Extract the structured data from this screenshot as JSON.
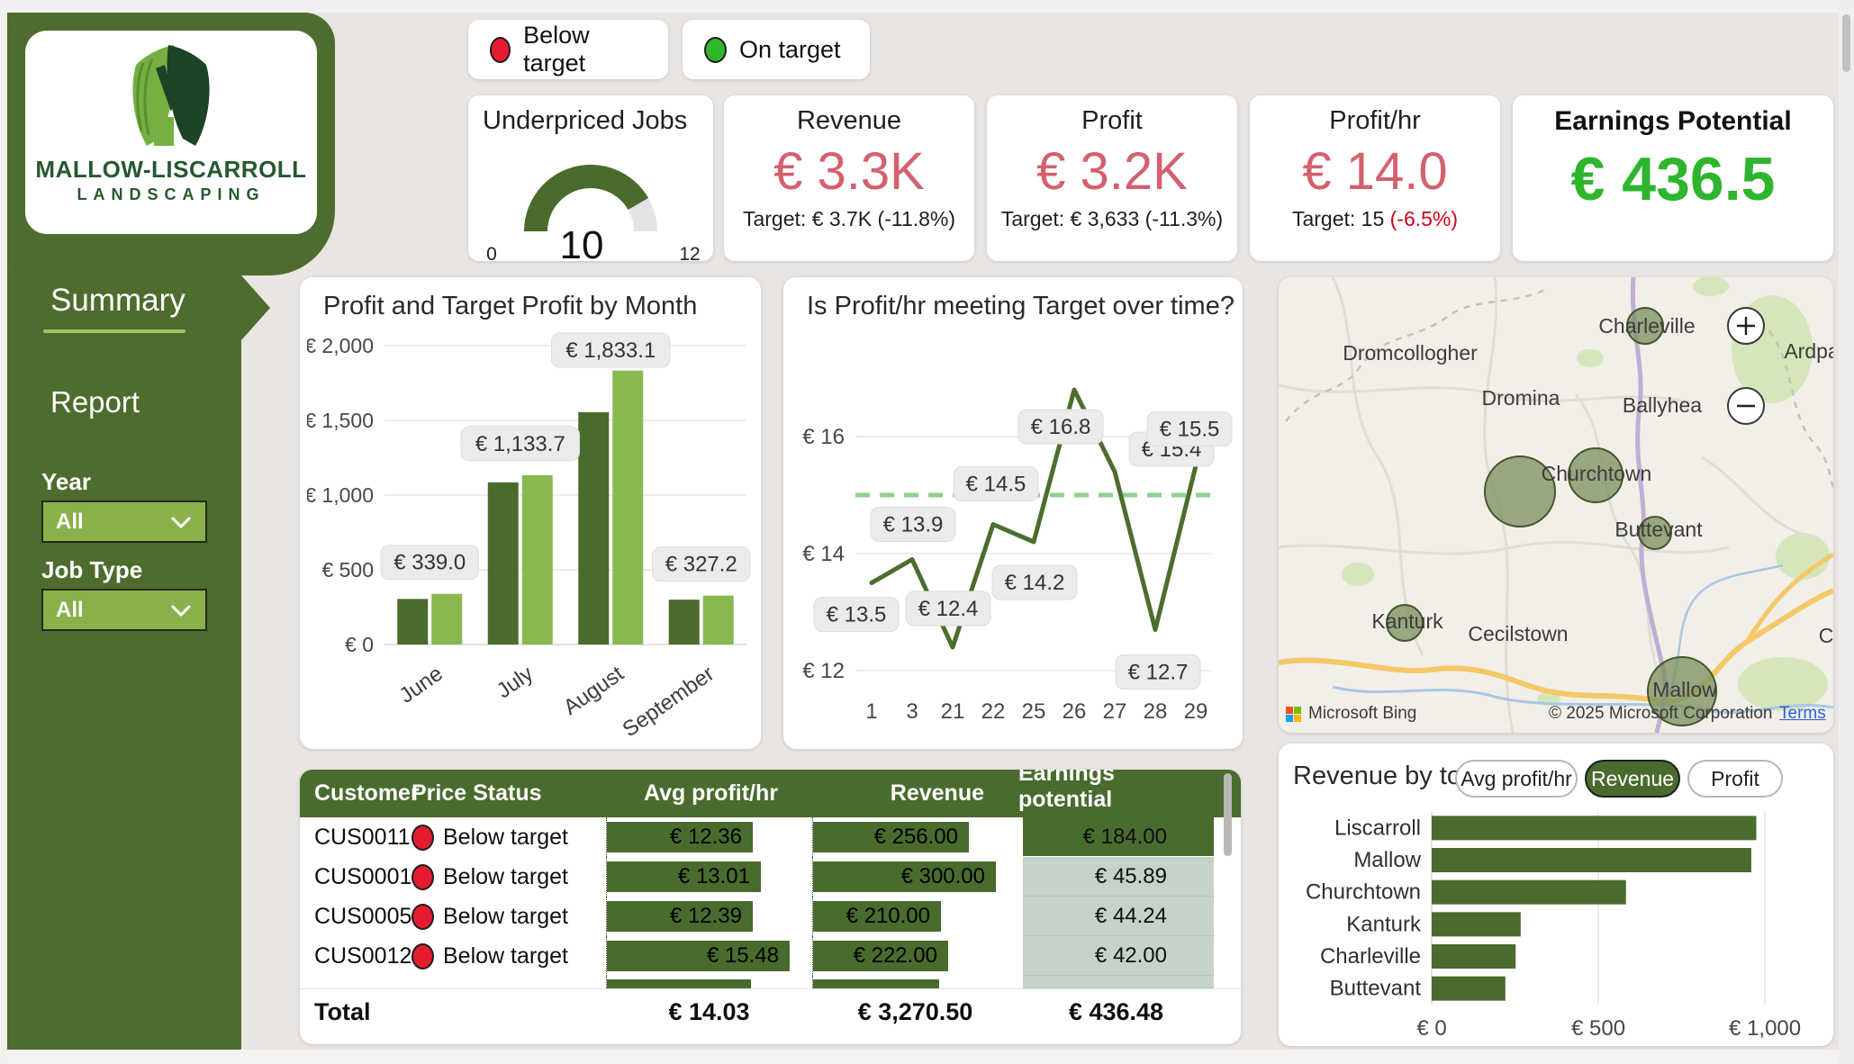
{
  "logo": {
    "line1": "MALLOW-LISCARROLL",
    "line2": "LANDSCAPING"
  },
  "legend": {
    "below_label": "Below target",
    "on_label": "On target"
  },
  "sidebar": {
    "nav": [
      {
        "label": "Summary"
      },
      {
        "label": "Report"
      }
    ],
    "filters": [
      {
        "label": "Year",
        "value": "All"
      },
      {
        "label": "Job Type",
        "value": "All"
      }
    ]
  },
  "kpi_cards": [
    {
      "title": "Revenue",
      "value": "€ 3.3K",
      "target_prefix": "Target: € 3.7K ",
      "target_delta": "(-11.8%)"
    },
    {
      "title": "Profit",
      "value": "€ 3.2K",
      "target_prefix": "Target: € 3,633 ",
      "target_delta": "(-11.3%)"
    },
    {
      "title": "Profit/hr",
      "value": "€ 14.0",
      "target_prefix": "Target: 15 ",
      "target_delta": "(-6.5%)"
    },
    {
      "title": "Earnings Potential",
      "value": "€ 436.5"
    }
  ],
  "toggle_buttons": {
    "options": [
      "Avg profit/hr",
      "Revenue",
      "Profit"
    ],
    "active": "Revenue"
  },
  "map": {
    "attribution": "Microsoft Bing",
    "copyright": "© 2025 Microsoft Corporation",
    "terms_label": "Terms",
    "labels": [
      "Dromcollogher",
      "Dromina",
      "Charleville",
      "Ballyhea",
      "Churchtown",
      "Buttevant",
      "Kanturk",
      "Cecilstown",
      "Mallow",
      "Ardpa",
      "C"
    ]
  },
  "table": {
    "columns": [
      "Customer",
      "Price Status",
      "Avg profit/hr",
      "Revenue",
      "Earnings potential"
    ],
    "sort_column": "Earnings potential",
    "sort_direction": "desc",
    "rows": [
      {
        "customer": "CUS0011",
        "status": "Below target",
        "avg": "€ 12.36",
        "revenue": "€ 256.00",
        "earnings": "€ 184.00",
        "earnings_style": "dark"
      },
      {
        "customer": "CUS0001",
        "status": "Below target",
        "avg": "€ 13.01",
        "revenue": "€ 300.00",
        "earnings": "€ 45.89",
        "earnings_style": "light"
      },
      {
        "customer": "CUS0005",
        "status": "Below target",
        "avg": "€ 12.39",
        "revenue": "€ 210.00",
        "earnings": "€ 44.24",
        "earnings_style": "light"
      },
      {
        "customer": "CUS0012",
        "status": "Below target",
        "avg": "€ 15.48",
        "revenue": "€ 222.00",
        "earnings": "€ 42.00",
        "earnings_style": "light"
      }
    ],
    "total": {
      "label": "Total",
      "avg": "€ 14.03",
      "revenue": "€ 3,270.50",
      "earnings": "€ 436.48"
    }
  },
  "colors": {
    "dark_green": "#4a6b2c",
    "light_green": "#8ab84f",
    "sidebar_green": "#4d6c2e",
    "kpi_red": "#d4606e",
    "kpi_green": "#2eb52e",
    "dot_red": "#e51c30",
    "dot_green": "#2db82d",
    "target_dash": "#90d08f",
    "table_light_cell": "#c5d3c9"
  },
  "chart_data": [
    {
      "id": "underpriced-gauge",
      "type": "gauge",
      "title": "Underpriced Jobs",
      "value": 10,
      "min": 0,
      "max": 12,
      "min_label": "0",
      "max_label": "12",
      "value_label": "10"
    },
    {
      "id": "profit-by-month",
      "type": "bar",
      "title": "Profit and Target Profit by Month",
      "categories": [
        "June",
        "July",
        "August",
        "September"
      ],
      "series": [
        {
          "name": "Profit",
          "values": [
            305,
            1085,
            1555,
            300
          ]
        },
        {
          "name": "Target Profit",
          "values": [
            339.0,
            1133.7,
            1833.1,
            327.2
          ]
        }
      ],
      "data_labels": [
        "€ 339.0",
        "€ 1,133.7",
        "€ 1,833.1",
        "€ 327.2"
      ],
      "ylim": [
        0,
        2000
      ],
      "grid": true,
      "yticks": [
        {
          "value": 0,
          "label": "€ 0"
        },
        {
          "value": 500,
          "label": "€ 500"
        },
        {
          "value": 1000,
          "label": "€ 1,000"
        },
        {
          "value": 1500,
          "label": "€ 1,500"
        },
        {
          "value": 2000,
          "label": "€ 2,000"
        }
      ]
    },
    {
      "id": "profit-hr-over-time",
      "type": "line",
      "title": "Is Profit/hr meeting Target over time?",
      "x": [
        "1",
        "3",
        "21",
        "22",
        "25",
        "26",
        "27",
        "28",
        "29"
      ],
      "values": [
        13.5,
        13.9,
        12.4,
        14.5,
        14.2,
        16.8,
        15.4,
        12.7,
        15.5
      ],
      "data_labels": [
        "€ 13.5",
        "€ 13.9",
        "€ 12.4",
        "€ 14.5",
        "€ 14.2",
        "€ 16.8",
        "€ 15.4",
        "€ 12.7",
        "€ 15.5"
      ],
      "target": 15,
      "ylim": [
        11.8,
        17.4
      ],
      "grid": true,
      "yticks": [
        {
          "value": 12,
          "label": "€ 12"
        },
        {
          "value": 14,
          "label": "€ 14"
        },
        {
          "value": 16,
          "label": "€ 16"
        }
      ]
    },
    {
      "id": "revenue-by-town",
      "type": "bar-horizontal",
      "title": "Revenue by town",
      "categories": [
        "Liscarroll",
        "Mallow",
        "Churchtown",
        "Kanturk",
        "Charleville",
        "Buttevant"
      ],
      "values": [
        974,
        959,
        583,
        267,
        252,
        221
      ],
      "xlim": [
        0,
        1070
      ],
      "xticks": [
        {
          "value": 0,
          "label": "€ 0"
        },
        {
          "value": 500,
          "label": "€ 500"
        },
        {
          "value": 1000,
          "label": "€ 1,000"
        }
      ]
    },
    {
      "id": "map-bubbles",
      "type": "map-bubbles",
      "bubbles": [
        {
          "town": "Liscarroll",
          "value": 974
        },
        {
          "town": "Mallow",
          "value": 959
        },
        {
          "town": "Churchtown",
          "value": 583
        },
        {
          "town": "Kanturk",
          "value": 267
        },
        {
          "town": "Charleville",
          "value": 252
        },
        {
          "town": "Buttevant",
          "value": 221
        }
      ]
    }
  ]
}
